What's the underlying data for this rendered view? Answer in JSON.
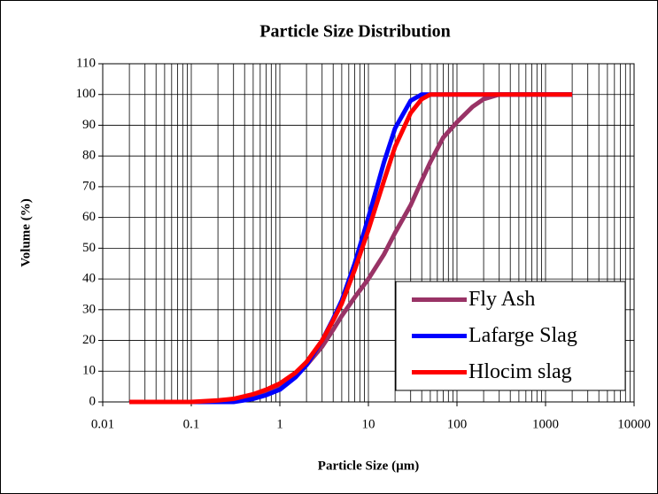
{
  "chart_data": {
    "type": "line",
    "title": "Particle Size Distribution",
    "x_label": "Particle Size (µm)",
    "y_label": "Volume (%)",
    "x": [
      0.02,
      0.05,
      0.1,
      0.2,
      0.3,
      0.5,
      0.7,
      1,
      1.5,
      2,
      3,
      4,
      5,
      7,
      10,
      15,
      20,
      30,
      40,
      50,
      70,
      100,
      150,
      200,
      300,
      500,
      1000,
      2000
    ],
    "series": [
      {
        "name": "Fly Ash",
        "color": "#993366",
        "values": [
          0,
          0,
          0,
          0,
          0.3,
          1.5,
          3,
          5,
          8.5,
          12,
          18,
          23.5,
          28,
          34,
          40,
          48,
          55,
          64,
          72,
          78,
          86,
          91,
          96,
          98.5,
          100,
          100,
          100,
          100
        ]
      },
      {
        "name": "Lafarge Slag",
        "color": "#0000ff",
        "values": [
          0,
          0,
          0,
          0,
          0,
          1,
          2.2,
          4,
          8,
          12,
          20,
          27,
          33,
          45,
          60,
          78,
          89,
          98,
          100,
          100,
          100,
          100,
          100,
          100,
          100,
          100,
          100,
          100
        ]
      },
      {
        "name": "Hlocim slag",
        "color": "#ff0000",
        "values": [
          0,
          0,
          0,
          0.5,
          1,
          2.5,
          4,
          6,
          9.5,
          13,
          20,
          26.5,
          32,
          43,
          56,
          72,
          83,
          94,
          98.5,
          100,
          100,
          100,
          100,
          100,
          100,
          100,
          100,
          100
        ]
      }
    ],
    "xlim": [
      0.01,
      10000
    ],
    "xticks": [
      0.01,
      0.1,
      1,
      10,
      100,
      1000,
      10000
    ],
    "xscale": "log",
    "ylim": [
      0,
      110
    ],
    "yticks": [
      0,
      10,
      20,
      30,
      40,
      50,
      60,
      70,
      80,
      90,
      100,
      110
    ],
    "grid": true,
    "legend": "lower right"
  }
}
